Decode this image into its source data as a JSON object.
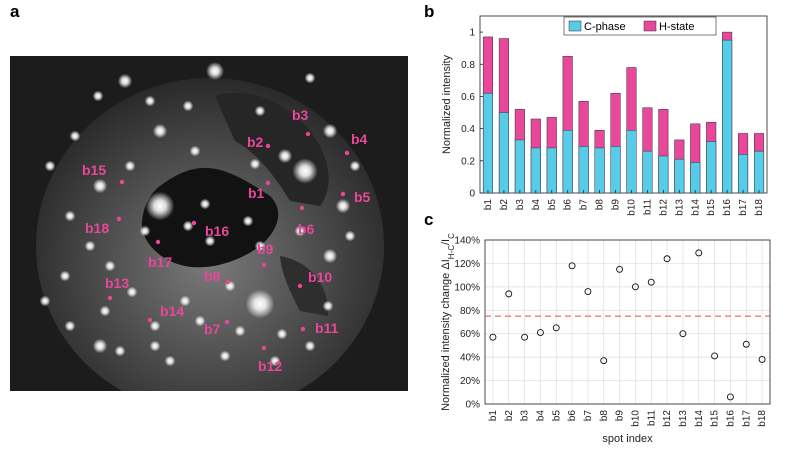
{
  "panels": {
    "a": "a",
    "b": "b",
    "c": "c"
  },
  "colors": {
    "c_phase": "#58cbe8",
    "h_state": "#e8479a",
    "marker": "#e8479a",
    "ref_line": "#e84a4a"
  },
  "diffraction_spots": [
    "b1",
    "b2",
    "b3",
    "b4",
    "b5",
    "b6",
    "b7",
    "b8",
    "b9",
    "b10",
    "b11",
    "b12",
    "b13",
    "b14",
    "b15",
    "b16",
    "b17",
    "b18"
  ],
  "chart_data": [
    {
      "type": "bar",
      "categories": [
        "b1",
        "b2",
        "b3",
        "b4",
        "b5",
        "b6",
        "b7",
        "b8",
        "b9",
        "b10",
        "b11",
        "b12",
        "b13",
        "b14",
        "b15",
        "b16",
        "b17",
        "b18"
      ],
      "series": [
        {
          "name": "C-phase",
          "values": [
            0.62,
            0.5,
            0.33,
            0.28,
            0.28,
            0.39,
            0.29,
            0.28,
            0.29,
            0.39,
            0.26,
            0.23,
            0.21,
            0.19,
            0.32,
            0.95,
            0.24,
            0.26
          ]
        },
        {
          "name": "H-state",
          "values": [
            0.97,
            0.96,
            0.52,
            0.46,
            0.47,
            0.85,
            0.57,
            0.39,
            0.62,
            0.78,
            0.53,
            0.52,
            0.33,
            0.43,
            0.44,
            1.0,
            0.37,
            0.37
          ]
        }
      ],
      "ylabel": "Normalized intensity",
      "ylim": [
        0,
        1.1
      ],
      "yticks": [
        0,
        0.2,
        0.4,
        0.6,
        0.8,
        1
      ],
      "ytick_labels": [
        "0",
        "0.2",
        "0.4",
        "0.6",
        "0.8",
        "1"
      ],
      "legend": "top-left",
      "grid": false
    },
    {
      "type": "scatter",
      "x": [
        "b1",
        "b2",
        "b3",
        "b4",
        "b5",
        "b6",
        "b7",
        "b8",
        "b9",
        "b10",
        "b11",
        "b12",
        "b13",
        "b14",
        "b15",
        "b16",
        "b17",
        "b18"
      ],
      "y": [
        57,
        94,
        57,
        61,
        65,
        118,
        96,
        37,
        115,
        100,
        104,
        124,
        60,
        129,
        41,
        6,
        51,
        38
      ],
      "ylabel_main": "Normalized intensity change ",
      "ylabel_delta": "ΔI",
      "ylabel_sub1": "H-C",
      "ylabel_slash": "/I",
      "ylabel_sub2": "C",
      "xlabel": "spot index",
      "ylim": [
        0,
        140
      ],
      "yticks": [
        0,
        20,
        40,
        60,
        80,
        100,
        120,
        140
      ],
      "ytick_labels": [
        "0%",
        "20%",
        "40%",
        "60%",
        "80%",
        "100%",
        "120%",
        "140%"
      ],
      "reference_line": 75,
      "grid": true
    }
  ]
}
